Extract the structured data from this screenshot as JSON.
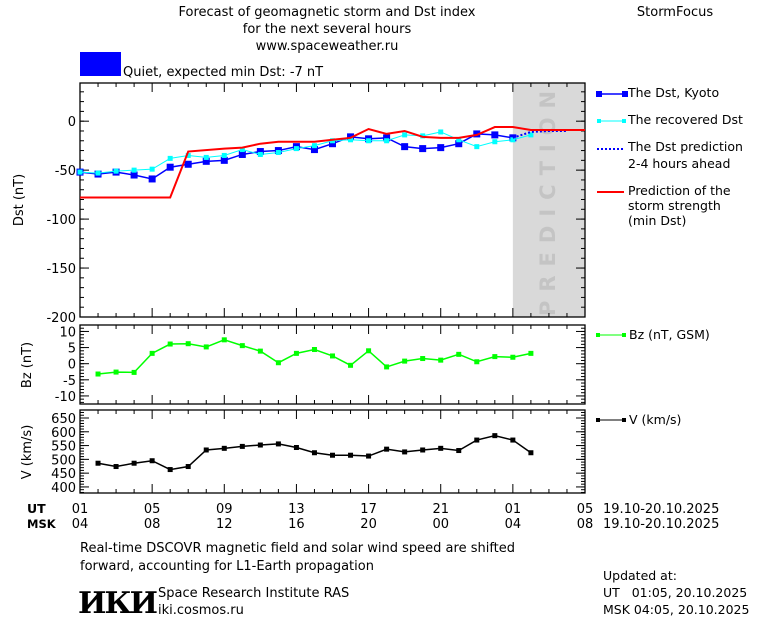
{
  "header": {
    "title_lines": [
      "Forecast of geomagnetic storm and Dst index",
      "for the next several hours",
      "www.spaceweather.ru"
    ],
    "brand": "StormFocus",
    "status_color": "#0000ff",
    "status_text": "Quiet, expected min Dst: -7 nT"
  },
  "prediction_label": "PREDICTION",
  "colors": {
    "dst_kyoto": "#0000ff",
    "dst_recovered": "#00ffff",
    "dst_prediction": "#0000ff",
    "min_dst": "#ff0000",
    "bz": "#00ff00",
    "v": "#000000",
    "prediction_zone": "#d9d9d9"
  },
  "chart_data": [
    {
      "type": "line",
      "ylabel": "Dst (nT)",
      "ylim": [
        -200,
        39
      ],
      "yticks": [
        0,
        -50,
        -100,
        -150,
        -200
      ],
      "x_unit": "hours from 01 UT 19.10.2025",
      "xlim": [
        0,
        28
      ],
      "prediction_zone": [
        24,
        28
      ],
      "series": [
        {
          "name": "The Dst, Kyoto",
          "x": [
            0,
            1,
            2,
            3,
            4,
            5,
            6,
            7,
            8,
            9,
            10,
            11,
            12,
            13,
            14,
            15,
            16,
            17,
            18,
            19,
            20,
            21,
            22,
            23,
            24
          ],
          "values": [
            -52,
            -54,
            -52,
            -55,
            -59,
            -47,
            -44,
            -41,
            -40,
            -34,
            -31,
            -30,
            -26,
            -29,
            -23,
            -16,
            -18,
            -17,
            -26,
            -28,
            -27,
            -23,
            -13,
            -14,
            -17
          ]
        },
        {
          "name": "The recovered Dst",
          "x": [
            0,
            1,
            2,
            3,
            4,
            5,
            6,
            7,
            8,
            9,
            10,
            11,
            12,
            13,
            14,
            15,
            16,
            17,
            18,
            19,
            20,
            21,
            22,
            23,
            24,
            25
          ],
          "values": [
            -52,
            -53,
            -51,
            -50,
            -49,
            -38,
            -35,
            -37,
            -35,
            -29,
            -34,
            -32,
            -28,
            -25,
            -20,
            -19,
            -20,
            -20,
            -14,
            -15,
            -11,
            -19,
            -26,
            -21,
            -19,
            -14
          ]
        },
        {
          "name": "The Dst prediction 2-4 hours ahead",
          "x": [
            24,
            25,
            26,
            27
          ],
          "values": [
            -17,
            -11,
            -10,
            -10
          ]
        },
        {
          "name": "Prediction of the storm strength (min Dst)",
          "x": [
            0,
            5,
            6,
            8,
            9,
            10,
            11,
            13,
            14,
            15,
            16,
            17,
            18,
            19,
            20,
            21,
            22,
            23,
            24,
            25,
            28
          ],
          "values": [
            -78,
            -78,
            -31,
            -28,
            -27,
            -23,
            -21,
            -21,
            -19,
            -17,
            -8,
            -13,
            -10,
            -16,
            -17,
            -17,
            -14,
            -6,
            -6,
            -9,
            -9
          ]
        }
      ]
    },
    {
      "type": "line",
      "ylabel": "Bz (nT)",
      "ylim": [
        -12.5,
        12
      ],
      "yticks": [
        10,
        5,
        0,
        -5,
        -10
      ],
      "series": [
        {
          "name": "Bz (nT, GSM)",
          "x": [
            1,
            2,
            3,
            4,
            5,
            6,
            7,
            8,
            9,
            10,
            11,
            12,
            13,
            14,
            15,
            16,
            17,
            18,
            19,
            20,
            21,
            22,
            23,
            24,
            25
          ],
          "values": [
            -3.2,
            -2.6,
            -2.7,
            3.2,
            6.1,
            6.2,
            5.2,
            7.4,
            5.6,
            3.9,
            0.3,
            3.2,
            4.4,
            2.4,
            -0.5,
            4.0,
            -1.0,
            0.8,
            1.6,
            1.1,
            2.9,
            0.6,
            2.2,
            2.0,
            3.2
          ]
        }
      ]
    },
    {
      "type": "line",
      "ylabel": "V (km/s)",
      "ylim": [
        378,
        679
      ],
      "yticks": [
        650,
        600,
        550,
        500,
        450,
        400
      ],
      "series": [
        {
          "name": "V (km/s)",
          "x": [
            1,
            2,
            3,
            4,
            5,
            6,
            7,
            8,
            9,
            10,
            11,
            12,
            13,
            14,
            15,
            16,
            17,
            18,
            19,
            20,
            21,
            22,
            23,
            24,
            25
          ],
          "values": [
            486,
            474,
            486,
            495,
            463,
            474,
            534,
            540,
            547,
            552,
            556,
            543,
            524,
            515,
            515,
            512,
            537,
            527,
            534,
            540,
            532,
            570,
            586,
            570,
            524
          ]
        }
      ]
    }
  ],
  "xaxis": {
    "ut_label": "UT",
    "msk_label": "MSK",
    "ut_ticks": [
      "01",
      "05",
      "09",
      "13",
      "17",
      "21",
      "01",
      "05"
    ],
    "msk_ticks": [
      "04",
      "08",
      "12",
      "16",
      "20",
      "00",
      "04",
      "08"
    ],
    "ut_range": "19.10-20.10.2025",
    "msk_range": "19.10-20.10.2025"
  },
  "legend": {
    "dst_kyoto": "The Dst, Kyoto",
    "dst_recovered": "The recovered Dst",
    "dst_prediction": [
      "The Dst prediction",
      "2-4 hours ahead"
    ],
    "min_dst": [
      "Prediction of the",
      "storm strength",
      "(min Dst)"
    ],
    "bz": "Bz (nT, GSM)",
    "v": "V (km/s)"
  },
  "footer": {
    "note_lines": [
      "Real-time DSCOVR magnetic field and solar wind speed are shifted",
      "forward, accounting for L1-Earth propagation"
    ],
    "logo_text": "ИКИ",
    "institute": "Space Research Institute RAS",
    "url": "iki.cosmos.ru",
    "updated_label": "Updated at:",
    "updated_ut": "UT   01:05, 20.10.2025",
    "updated_msk": "MSK 04:05, 20.10.2025"
  }
}
